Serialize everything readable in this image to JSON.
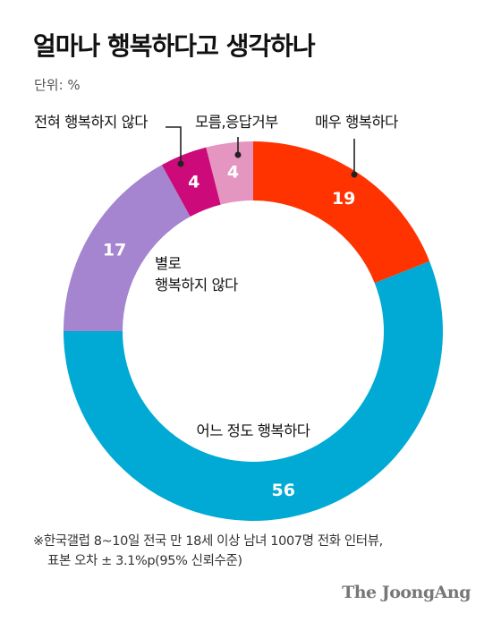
{
  "title": "얼마나 행복하다고 생각하나",
  "unit": "단위: %",
  "colors": {
    "very_happy": "#ff3300",
    "somewhat_happy": "#00aad4",
    "not_very_happy": "#a584d0",
    "not_at_all_happy": "#cc0a7a",
    "dont_know": "#e495c0",
    "callout_line": "#222222"
  },
  "chart_data": {
    "type": "pie",
    "donut": true,
    "categories": [
      "매우 행복하다",
      "어느 정도 행복하다",
      "별로 행복하지 않다",
      "전혀 행복하지 않다",
      "모름,응답거부"
    ],
    "values": [
      19,
      56,
      17,
      4,
      4
    ],
    "value_labels": [
      "19",
      "56",
      "17",
      "4",
      "4"
    ],
    "label_lines": [
      [
        "매우 행복하다"
      ],
      [
        "어느 정도 행복하다"
      ],
      [
        "별로",
        "행복하지 않다"
      ],
      [
        "전혀 행복하지 않다"
      ],
      [
        "모름,응답거부"
      ]
    ]
  },
  "footnote": {
    "line1": "※한국갤럽 8~10일 전국 만 18세 이상 남녀 1007명 전화 인터뷰,",
    "line2": "표본 오차 ± 3.1%p(95% 신뢰수준)"
  },
  "brand": "The JoongAng"
}
